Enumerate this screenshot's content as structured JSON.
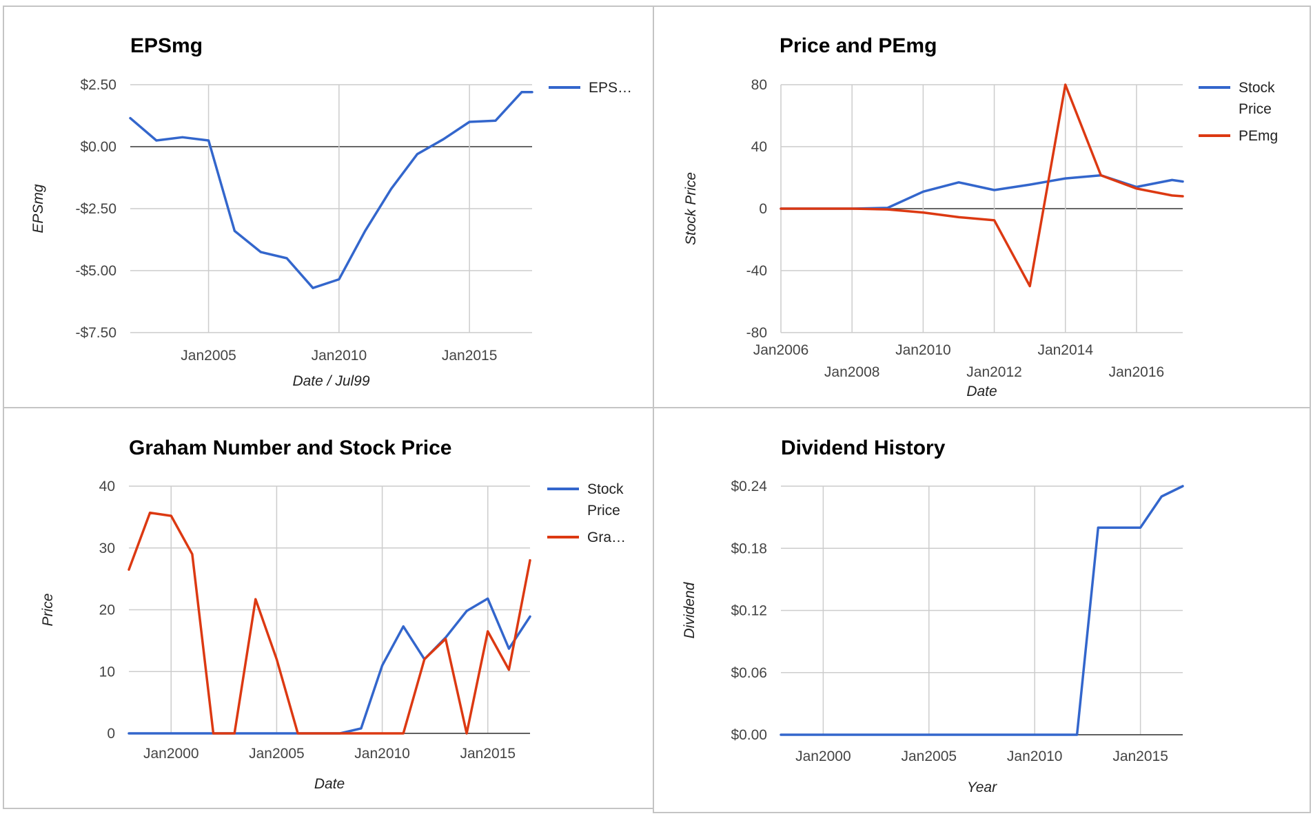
{
  "chart_data": [
    {
      "id": "eps",
      "type": "line",
      "title": "EPSmg",
      "xlabel": "Date / Jul99",
      "ylabel": "EPSmg",
      "xlim": [
        2002.0,
        2017.4
      ],
      "ylim": [
        -7.5,
        2.5
      ],
      "yticks": [
        2.5,
        0,
        -2.5,
        -5,
        -7.5
      ],
      "ytick_labels": [
        "$2.50",
        "$0.00",
        "-$2.50",
        "-$5.00",
        "-$7.50"
      ],
      "xticks": [
        2005,
        2010,
        2015
      ],
      "xtick_labels": [
        "Jan2005",
        "Jan2010",
        "Jan2015"
      ],
      "legend": "right",
      "series": [
        {
          "name": "EPS…",
          "color": "#3366cc",
          "x": [
            2002.0,
            2003.0,
            2004.0,
            2005.0,
            2006.0,
            2007.0,
            2008.0,
            2009.0,
            2010.0,
            2011.0,
            2012.0,
            2013.0,
            2014.0,
            2015.0,
            2016.0,
            2017.0,
            2017.4
          ],
          "y": [
            1.15,
            0.25,
            0.38,
            0.25,
            -3.4,
            -4.25,
            -4.5,
            -5.7,
            -5.35,
            -3.4,
            -1.7,
            -0.3,
            0.3,
            1.0,
            1.05,
            2.2,
            2.2
          ]
        }
      ]
    },
    {
      "id": "price",
      "type": "line",
      "title": "Price and PEmg",
      "xlabel": "Date",
      "ylabel": "Stock Price",
      "xlim": [
        2006.0,
        2017.3
      ],
      "ylim": [
        -80,
        80
      ],
      "yticks": [
        80,
        40,
        0,
        -40,
        -80
      ],
      "ytick_labels": [
        "80",
        "40",
        "0",
        "-40",
        "-80"
      ],
      "xticks": [
        2006,
        2008,
        2010,
        2012,
        2014,
        2016
      ],
      "xtick_labels": [
        "Jan2006",
        "Jan2008",
        "Jan2010",
        "Jan2012",
        "Jan2014",
        "Jan2016"
      ],
      "legend": "right",
      "series": [
        {
          "name_lines": [
            "Stock",
            "Price"
          ],
          "color": "#3366cc",
          "x": [
            2006.0,
            2007.0,
            2008.0,
            2009.0,
            2010.0,
            2011.0,
            2012.0,
            2013.0,
            2014.0,
            2015.0,
            2016.0,
            2017.0,
            2017.3
          ],
          "y": [
            0,
            0,
            0,
            0.5,
            11,
            17,
            12,
            15.5,
            19.5,
            21.5,
            14,
            18.5,
            17.5
          ]
        },
        {
          "name_lines": [
            "PEmg"
          ],
          "color": "#dc3912",
          "x": [
            2006.0,
            2007.0,
            2008.0,
            2009.0,
            2010.0,
            2011.0,
            2012.0,
            2013.0,
            2014.0,
            2015.0,
            2016.0,
            2017.0,
            2017.3
          ],
          "y": [
            0,
            0,
            0,
            -0.5,
            -2.5,
            -5.5,
            -7.5,
            -50,
            80,
            21.5,
            13,
            8.5,
            8
          ]
        }
      ]
    },
    {
      "id": "graham",
      "type": "line",
      "title": "Graham Number and Stock Price",
      "xlabel": "Date",
      "ylabel": "Price",
      "xlim": [
        1998.0,
        2017.0
      ],
      "ylim": [
        0,
        40
      ],
      "yticks": [
        40,
        30,
        20,
        10,
        0
      ],
      "ytick_labels": [
        "40",
        "30",
        "20",
        "10",
        "0"
      ],
      "xticks": [
        2000,
        2005,
        2010,
        2015
      ],
      "xtick_labels": [
        "Jan2000",
        "Jan2005",
        "Jan2010",
        "Jan2015"
      ],
      "legend": "right",
      "series": [
        {
          "name_lines": [
            "Stock",
            "Price"
          ],
          "color": "#3366cc",
          "x": [
            1998.0,
            1999.0,
            2000.0,
            2001.0,
            2002.0,
            2003.0,
            2004.0,
            2005.0,
            2006.0,
            2007.0,
            2008.0,
            2009.0,
            2010.0,
            2011.0,
            2012.0,
            2013.0,
            2014.0,
            2015.0,
            2016.0,
            2017.0
          ],
          "y": [
            0,
            0,
            0,
            0,
            0,
            0,
            0,
            0,
            0,
            0,
            0,
            0.8,
            11,
            17.3,
            12,
            15.5,
            19.8,
            21.8,
            13.7,
            18.9
          ]
        },
        {
          "name_lines": [
            "Gra…"
          ],
          "color": "#dc3912",
          "x": [
            1998.0,
            1999.0,
            2000.0,
            2001.0,
            2002.0,
            2003.0,
            2004.0,
            2005.0,
            2006.0,
            2007.0,
            2008.0,
            2009.0,
            2010.0,
            2011.0,
            2012.0,
            2013.0,
            2014.0,
            2015.0,
            2016.0,
            2017.0
          ],
          "y": [
            26.5,
            35.7,
            35.2,
            29,
            0,
            0,
            21.7,
            12,
            0,
            0,
            0,
            0,
            0,
            0,
            12,
            15.3,
            0,
            16.5,
            10.3,
            28
          ]
        }
      ]
    },
    {
      "id": "dividend",
      "type": "line",
      "title": "Dividend History",
      "xlabel": "Year",
      "ylabel": "Dividend",
      "xlim": [
        1998.0,
        2017.0
      ],
      "ylim": [
        0,
        0.24
      ],
      "yticks": [
        0.24,
        0.18,
        0.12,
        0.06,
        0
      ],
      "ytick_labels": [
        "$0.24",
        "$0.18",
        "$0.12",
        "$0.06",
        "$0.00"
      ],
      "xticks": [
        2000,
        2005,
        2010,
        2015
      ],
      "xtick_labels": [
        "Jan2000",
        "Jan2005",
        "Jan2010",
        "Jan2015"
      ],
      "legend": "none",
      "series": [
        {
          "color": "#3366cc",
          "x": [
            1998.0,
            2012.0,
            2013.0,
            2015.0,
            2016.0,
            2017.0
          ],
          "y": [
            0,
            0,
            0.2,
            0.2,
            0.23,
            0.24
          ]
        }
      ]
    }
  ]
}
